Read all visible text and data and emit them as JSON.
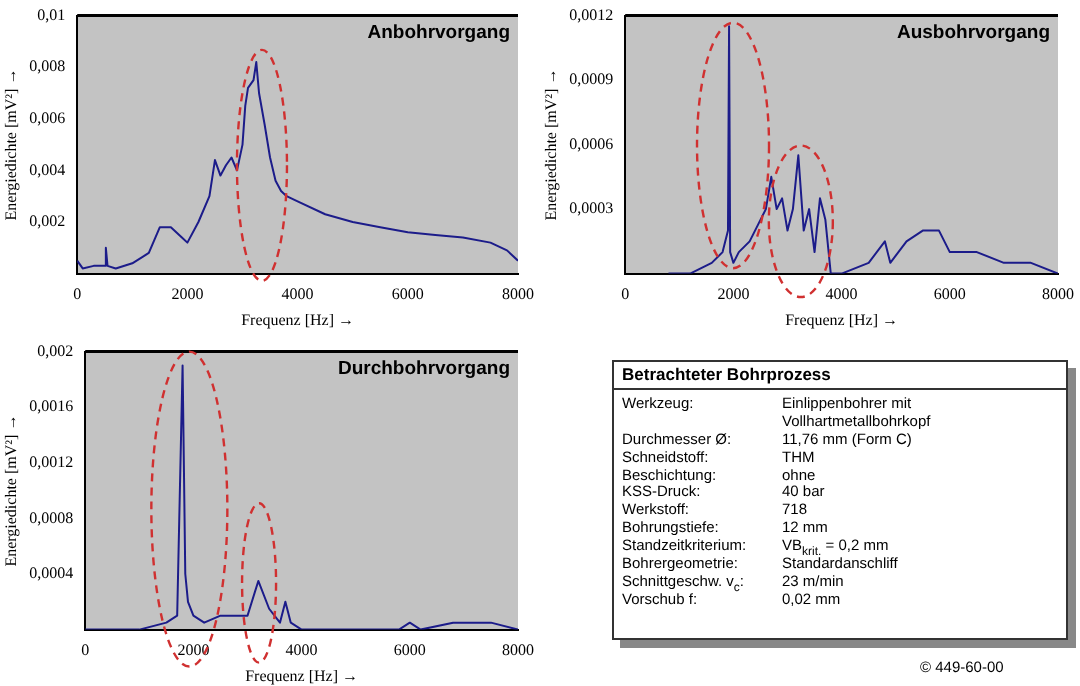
{
  "chart_data": [
    {
      "type": "line",
      "title": "Anbohrvorgang",
      "xlabel": "Frequenz [Hz] →",
      "ylabel": "Energiedichte [mV²] →",
      "marker": "none",
      "color": "#1c1c8a",
      "x": [
        0,
        100,
        300,
        500,
        520,
        550,
        700,
        1000,
        1300,
        1500,
        1700,
        1900,
        2000,
        2200,
        2400,
        2500,
        2600,
        2700,
        2800,
        2900,
        3000,
        3050,
        3100,
        3200,
        3250,
        3300,
        3400,
        3500,
        3600,
        3700,
        3800,
        4000,
        4500,
        5000,
        5500,
        6000,
        6500,
        7000,
        7500,
        7800,
        8000
      ],
      "values": [
        0.0005,
        0.0002,
        0.0003,
        0.0003,
        0.001,
        0.0003,
        0.0002,
        0.0004,
        0.0008,
        0.0018,
        0.0018,
        0.0014,
        0.0012,
        0.002,
        0.003,
        0.0044,
        0.0038,
        0.0042,
        0.0045,
        0.004,
        0.005,
        0.0065,
        0.0072,
        0.0075,
        0.0082,
        0.007,
        0.0058,
        0.0045,
        0.0036,
        0.0032,
        0.003,
        0.0028,
        0.0023,
        0.002,
        0.0018,
        0.0016,
        0.0015,
        0.0014,
        0.0012,
        0.0009,
        0.0005
      ],
      "xlim": [
        0,
        8000
      ],
      "xticks": [
        0,
        2000,
        4000,
        6000,
        8000
      ],
      "ylim": [
        0,
        0.01
      ],
      "yticks": [
        {
          "value": 0.002,
          "label": "0,002"
        },
        {
          "value": 0.004,
          "label": "0,004"
        },
        {
          "value": 0.006,
          "label": "0,006"
        },
        {
          "value": 0.008,
          "label": "0,008"
        },
        {
          "value": 0.01,
          "label": "0,01"
        }
      ]
    },
    {
      "type": "line",
      "title": "Ausbohrvorgang",
      "xlabel": "Frequenz [Hz] →",
      "ylabel": "Energiedichte [mV²] →",
      "marker": "none",
      "color": "#1c1c8a",
      "x": [
        800,
        1200,
        1600,
        1800,
        1900,
        1920,
        1940,
        2000,
        2100,
        2300,
        2500,
        2600,
        2700,
        2800,
        2900,
        3000,
        3100,
        3200,
        3300,
        3400,
        3500,
        3600,
        3700,
        3800,
        4000,
        4500,
        4800,
        4900,
        5200,
        5500,
        5800,
        6000,
        6500,
        7000,
        7500,
        8000
      ],
      "values": [
        0,
        0,
        5e-05,
        0.0001,
        0.0002,
        0.00115,
        0.0001,
        5e-05,
        0.0001,
        0.00015,
        0.00025,
        0.0003,
        0.00045,
        0.0003,
        0.00035,
        0.0002,
        0.0003,
        0.00055,
        0.0002,
        0.0003,
        0.0001,
        0.00035,
        0.00025,
        0,
        0,
        5e-05,
        0.00015,
        5e-05,
        0.00015,
        0.0002,
        0.0002,
        0.0001,
        0.0001,
        5e-05,
        5e-05,
        0
      ],
      "xlim": [
        0,
        8000
      ],
      "xticks": [
        0,
        2000,
        4000,
        6000,
        8000
      ],
      "ylim": [
        0,
        0.0012
      ],
      "yticks": [
        {
          "value": 0.0003,
          "label": "0,0003"
        },
        {
          "value": 0.0006,
          "label": "0,0006"
        },
        {
          "value": 0.0009,
          "label": "0,0009"
        },
        {
          "value": 0.0012,
          "label": "0,0012"
        }
      ]
    },
    {
      "type": "line",
      "title": "Durchbohrvorgang",
      "xlabel": "Frequenz [Hz] →",
      "ylabel": "Energiedichte [mV²] →",
      "marker": "none",
      "color": "#1c1c8a",
      "x": [
        0,
        1000,
        1500,
        1700,
        1800,
        1850,
        1900,
        2000,
        2200,
        2500,
        2800,
        3000,
        3200,
        3400,
        3600,
        3700,
        3800,
        4000,
        5800,
        6000,
        6200,
        6800,
        7500,
        8000
      ],
      "values": [
        0,
        0,
        5e-05,
        0.0001,
        0.0019,
        0.0004,
        0.0002,
        0.0001,
        5e-05,
        0.0001,
        0.0001,
        0.0001,
        0.00035,
        0.00015,
        5e-05,
        0.0002,
        5e-05,
        0,
        0,
        5e-05,
        0,
        5e-05,
        5e-05,
        0
      ],
      "xlim": [
        0,
        8000
      ],
      "xticks": [
        0,
        2000,
        4000,
        6000,
        8000
      ],
      "ylim": [
        0,
        0.002
      ],
      "yticks": [
        {
          "value": 0.0004,
          "label": "0,0004"
        },
        {
          "value": 0.0008,
          "label": "0,0008"
        },
        {
          "value": 0.0012,
          "label": "0,0012"
        },
        {
          "value": 0.0016,
          "label": "0,0016"
        },
        {
          "value": 0.002,
          "label": "0,002"
        }
      ]
    },
    {
      "type": "other",
      "title": "Betrachteter Bohrprozess",
      "annotations": [
        "Werkzeug:",
        "Einlippenbohrer mit Vollhartmetallbohrkopf",
        "Durchmesser Ø:",
        "11,76 mm (Form C)",
        "Schneidstoff:",
        "THM",
        "Beschichtung:",
        "ohne",
        "KSS-Druck:",
        "40 bar",
        "Werkstoff:",
        "718",
        "Bohrungstiefe:",
        "12 mm",
        "Standzeitkriterium:",
        "VB$_{krit.}$ = 0,2 mm",
        "Bohrergeometrie:",
        "Standardanschliff",
        "Schnittgeschw. v$_{c}$:",
        "23 m/min",
        "Vorschub f:",
        "0,02 mm",
        "© 449-60-00"
      ]
    }
  ]
}
